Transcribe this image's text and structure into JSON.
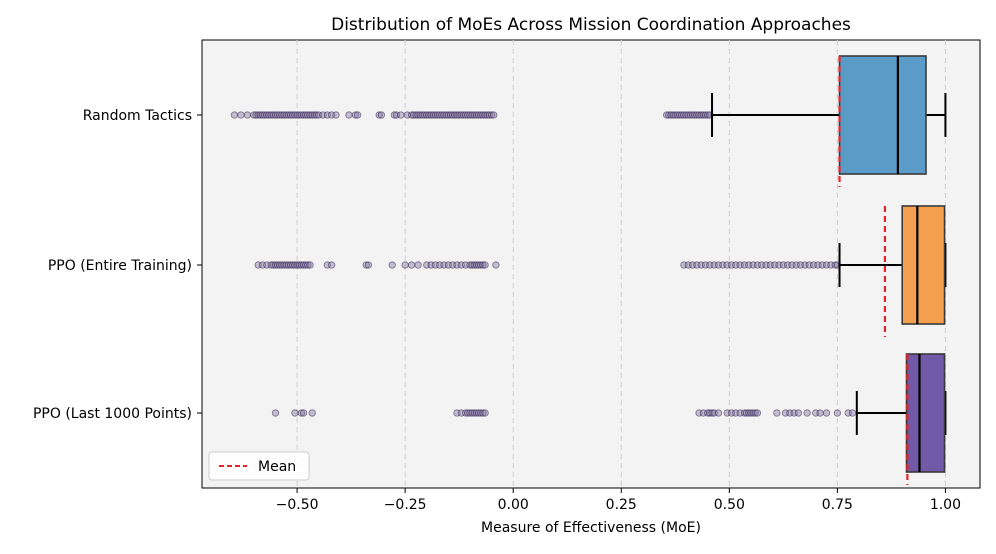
{
  "chart_data": {
    "type": "boxplot",
    "orientation": "horizontal",
    "title": "Distribution of MoEs Across Mission Coordination Approaches",
    "xlabel": "Measure of Effectiveness (MoE)",
    "ylabel": "",
    "xlim": [
      -0.72,
      1.08
    ],
    "xticks": [
      -0.5,
      -0.25,
      0.0,
      0.25,
      0.5,
      0.75,
      1.0
    ],
    "xtick_labels": [
      "−0.50",
      "−0.25",
      "0.00",
      "0.25",
      "0.50",
      "0.75",
      "1.00"
    ],
    "grid": "x-dashed",
    "legend": {
      "position": "bottom-left",
      "label": "Mean",
      "color": "#e8232a"
    },
    "series": [
      {
        "name": "Random Tactics",
        "color": "#5b9bc8",
        "whisker_low": 0.46,
        "q1": 0.755,
        "median": 0.89,
        "q3": 0.955,
        "whisker_high": 1.0,
        "mean": 0.755,
        "outliers": [
          -0.645,
          -0.63,
          -0.615,
          -0.6,
          -0.595,
          -0.59,
          -0.585,
          -0.58,
          -0.575,
          -0.57,
          -0.565,
          -0.56,
          -0.555,
          -0.55,
          -0.545,
          -0.54,
          -0.535,
          -0.53,
          -0.525,
          -0.52,
          -0.515,
          -0.51,
          -0.505,
          -0.5,
          -0.495,
          -0.49,
          -0.485,
          -0.48,
          -0.475,
          -0.47,
          -0.465,
          -0.46,
          -0.455,
          -0.45,
          -0.44,
          -0.43,
          -0.42,
          -0.41,
          -0.38,
          -0.365,
          -0.36,
          -0.31,
          -0.305,
          -0.275,
          -0.27,
          -0.26,
          -0.245,
          -0.235,
          -0.23,
          -0.225,
          -0.22,
          -0.215,
          -0.21,
          -0.205,
          -0.2,
          -0.195,
          -0.19,
          -0.185,
          -0.18,
          -0.175,
          -0.17,
          -0.165,
          -0.16,
          -0.155,
          -0.15,
          -0.145,
          -0.14,
          -0.135,
          -0.13,
          -0.125,
          -0.12,
          -0.115,
          -0.11,
          -0.105,
          -0.1,
          -0.095,
          -0.09,
          -0.085,
          -0.08,
          -0.075,
          -0.07,
          -0.065,
          -0.06,
          -0.055,
          -0.05,
          -0.045,
          0.355,
          0.36,
          0.365,
          0.37,
          0.375,
          0.38,
          0.385,
          0.39,
          0.395,
          0.4,
          0.405,
          0.41,
          0.415,
          0.42,
          0.425,
          0.43,
          0.435,
          0.44,
          0.445,
          0.45,
          0.455
        ]
      },
      {
        "name": "PPO (Entire Training)",
        "color": "#f5a04f",
        "whisker_low": 0.755,
        "q1": 0.9,
        "median": 0.935,
        "q3": 0.998,
        "whisker_high": 1.0,
        "mean": 0.86,
        "outliers": [
          -0.59,
          -0.58,
          -0.57,
          -0.56,
          -0.555,
          -0.55,
          -0.545,
          -0.54,
          -0.535,
          -0.53,
          -0.525,
          -0.52,
          -0.515,
          -0.51,
          -0.505,
          -0.5,
          -0.495,
          -0.49,
          -0.485,
          -0.48,
          -0.475,
          -0.47,
          -0.43,
          -0.42,
          -0.34,
          -0.335,
          -0.28,
          -0.25,
          -0.235,
          -0.22,
          -0.2,
          -0.19,
          -0.18,
          -0.17,
          -0.16,
          -0.15,
          -0.14,
          -0.13,
          -0.12,
          -0.11,
          -0.1,
          -0.095,
          -0.09,
          -0.085,
          -0.08,
          -0.075,
          -0.07,
          -0.065,
          -0.04,
          0.395,
          0.405,
          0.415,
          0.425,
          0.435,
          0.445,
          0.455,
          0.465,
          0.475,
          0.485,
          0.495,
          0.505,
          0.515,
          0.525,
          0.535,
          0.545,
          0.555,
          0.565,
          0.575,
          0.585,
          0.595,
          0.605,
          0.615,
          0.625,
          0.635,
          0.645,
          0.655,
          0.665,
          0.675,
          0.685,
          0.695,
          0.705,
          0.715,
          0.725,
          0.735,
          0.745,
          0.75
        ]
      },
      {
        "name": "PPO (Last 1000 Points)",
        "color": "#7059a6",
        "whisker_low": 0.795,
        "q1": 0.91,
        "median": 0.94,
        "q3": 0.998,
        "whisker_high": 1.0,
        "mean": 0.912,
        "outliers": [
          -0.55,
          -0.505,
          -0.49,
          -0.485,
          -0.465,
          -0.13,
          -0.12,
          -0.11,
          -0.105,
          -0.1,
          -0.095,
          -0.09,
          -0.085,
          -0.08,
          -0.075,
          -0.07,
          -0.065,
          0.43,
          0.44,
          0.45,
          0.455,
          0.46,
          0.465,
          0.475,
          0.495,
          0.505,
          0.515,
          0.525,
          0.535,
          0.54,
          0.545,
          0.55,
          0.555,
          0.56,
          0.565,
          0.61,
          0.63,
          0.64,
          0.65,
          0.66,
          0.68,
          0.7,
          0.71,
          0.725,
          0.75,
          0.775,
          0.785
        ]
      }
    ]
  }
}
